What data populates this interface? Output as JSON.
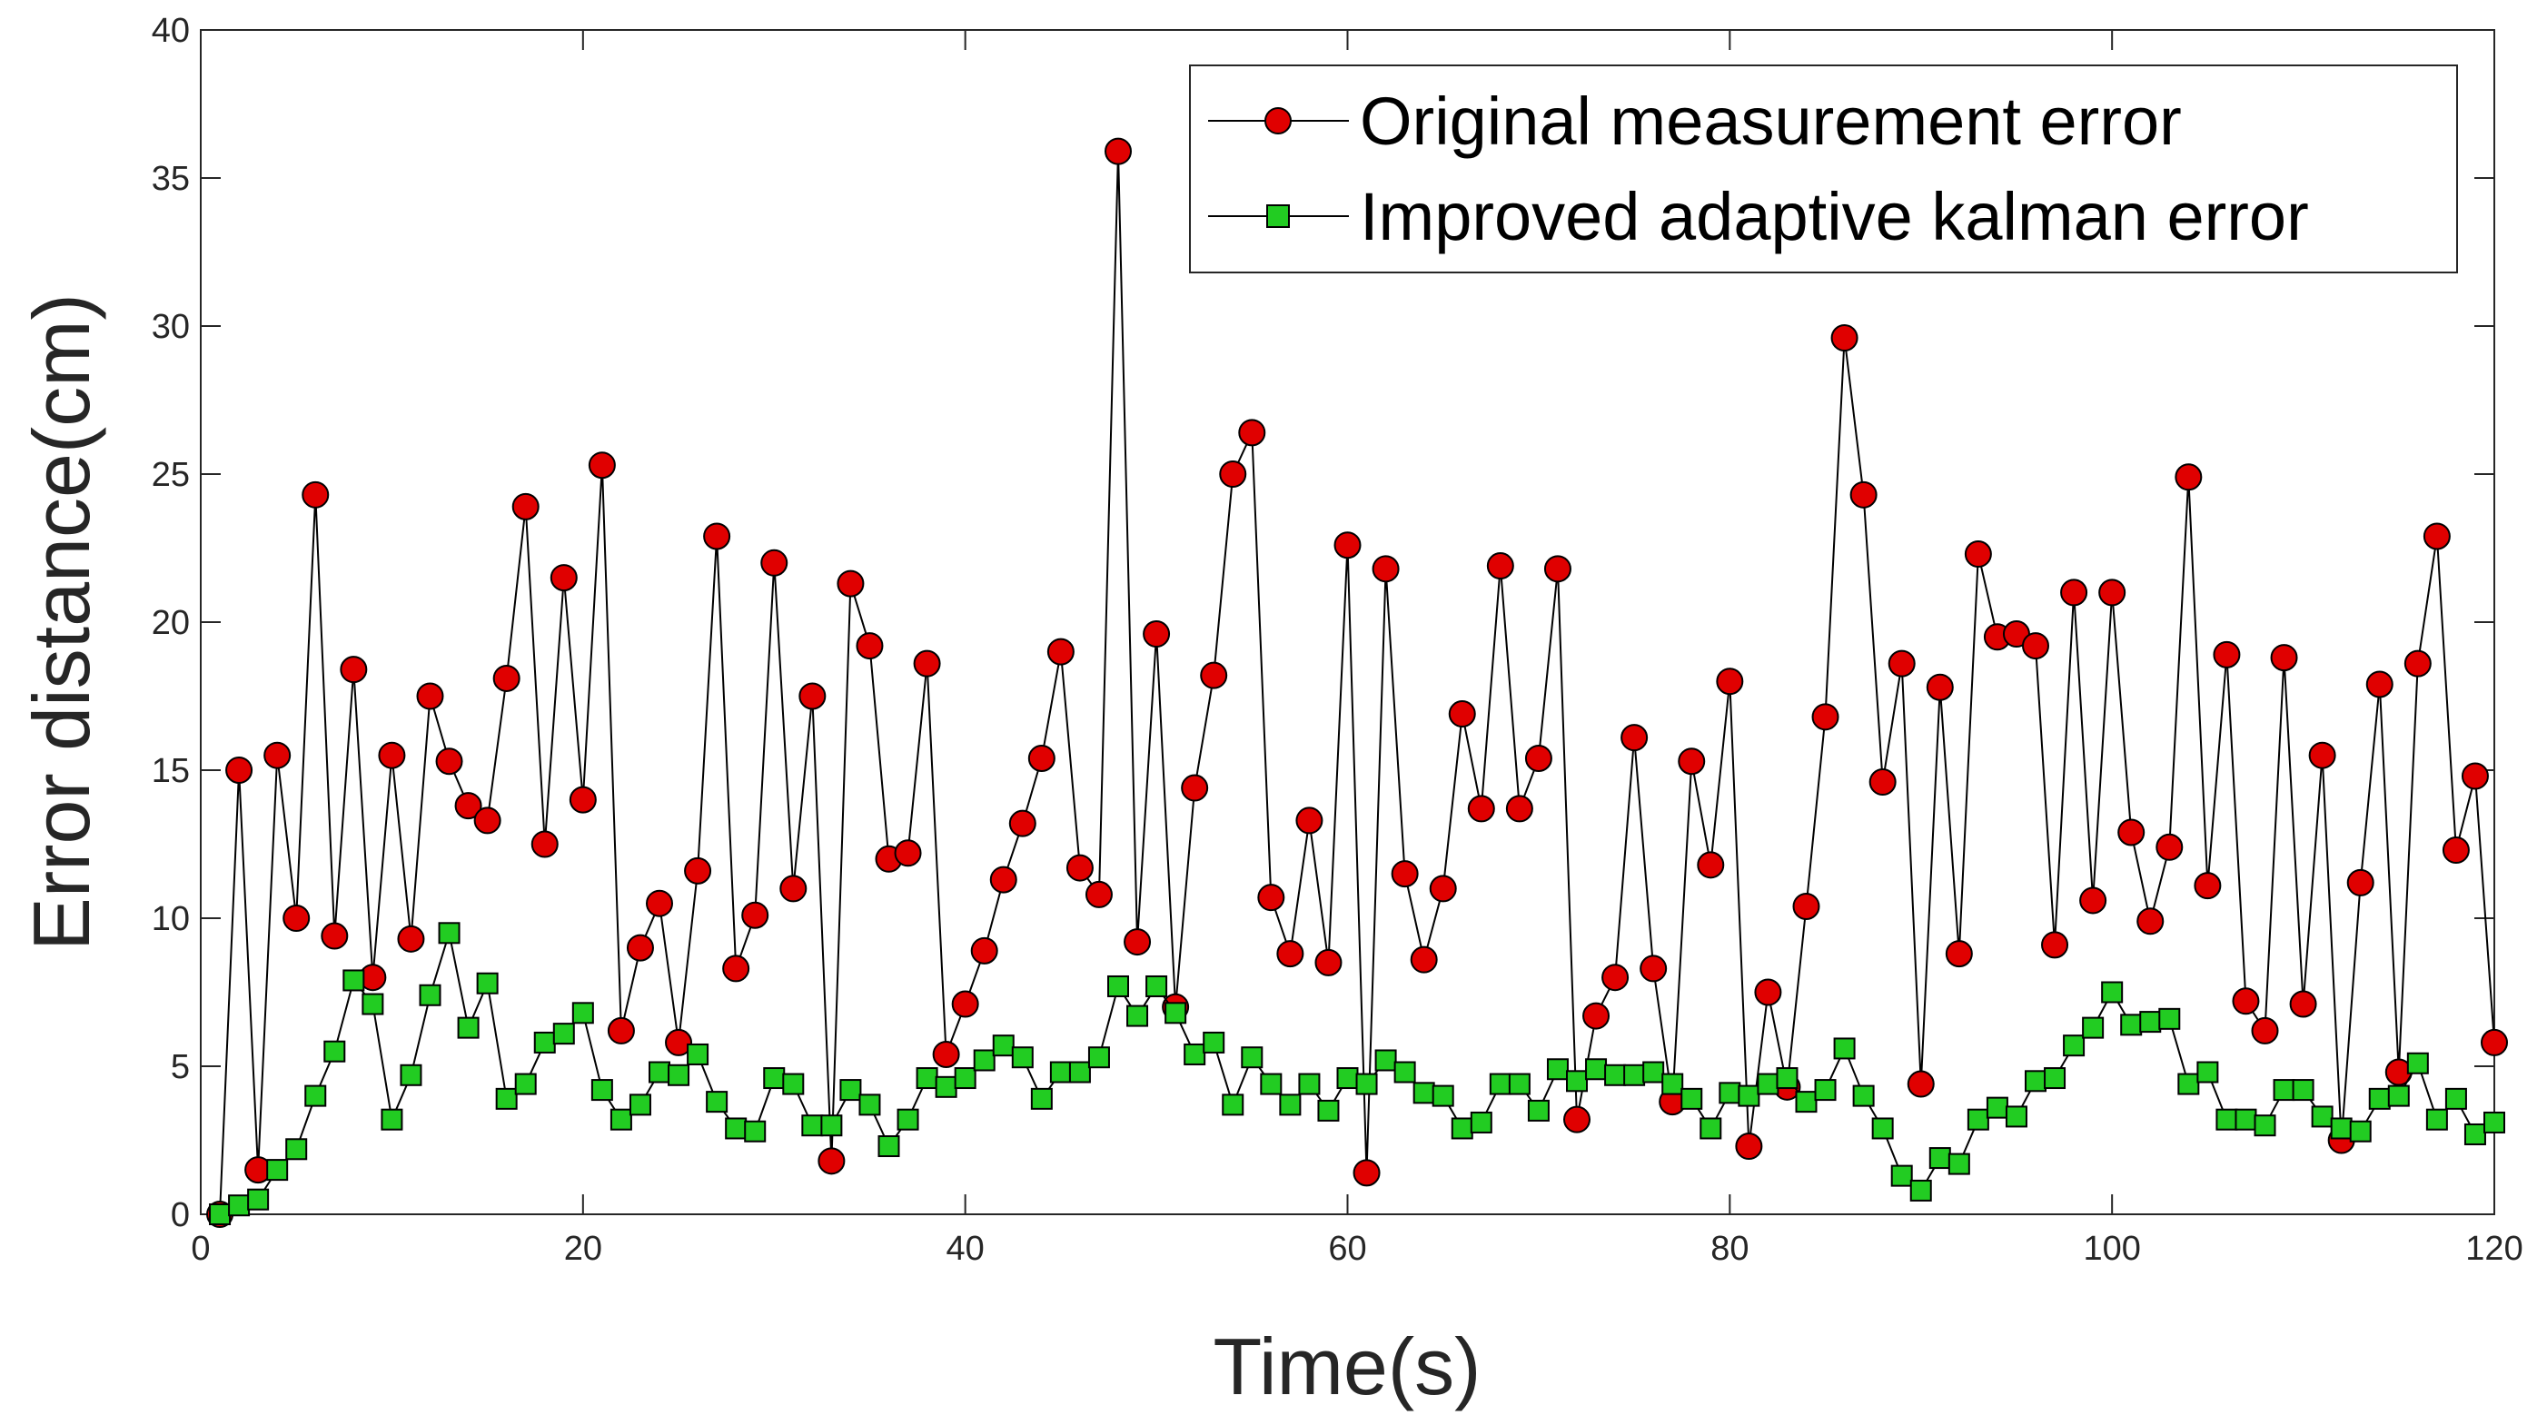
{
  "chart_data": {
    "type": "line",
    "title": "",
    "xlabel": "Time(s)",
    "ylabel": "Error distance(cm)",
    "xlim": [
      0,
      120
    ],
    "ylim": [
      0,
      40
    ],
    "xticks": [
      0,
      20,
      40,
      60,
      80,
      100,
      120
    ],
    "yticks": [
      0,
      5,
      10,
      15,
      20,
      25,
      30,
      35,
      40
    ],
    "grid": false,
    "legend_position": "top-right",
    "x": [
      1,
      2,
      3,
      4,
      5,
      6,
      7,
      8,
      9,
      10,
      11,
      12,
      13,
      14,
      15,
      16,
      17,
      18,
      19,
      20,
      21,
      22,
      23,
      24,
      25,
      26,
      27,
      28,
      29,
      30,
      31,
      32,
      33,
      34,
      35,
      36,
      37,
      38,
      39,
      40,
      41,
      42,
      43,
      44,
      45,
      46,
      47,
      48,
      49,
      50,
      51,
      52,
      53,
      54,
      55,
      56,
      57,
      58,
      59,
      60,
      61,
      62,
      63,
      64,
      65,
      66,
      67,
      68,
      69,
      70,
      71,
      72,
      73,
      74,
      75,
      76,
      77,
      78,
      79,
      80,
      81,
      82,
      83,
      84,
      85,
      86,
      87,
      88,
      89,
      90,
      91,
      92,
      93,
      94,
      95,
      96,
      97,
      98,
      99,
      100,
      101,
      102,
      103,
      104,
      105,
      106,
      107,
      108,
      109,
      110,
      111,
      112,
      113,
      114,
      115,
      116,
      117,
      118,
      119,
      120
    ],
    "series": [
      {
        "name": "Original measurement error",
        "color": "#e00000",
        "marker": "circle",
        "values": [
          0,
          15,
          1.5,
          15.5,
          10,
          24.3,
          9.4,
          18.4,
          8,
          15.5,
          9.3,
          17.5,
          15.3,
          13.8,
          13.3,
          18.1,
          23.9,
          12.5,
          21.5,
          14,
          25.3,
          6.2,
          9,
          10.5,
          5.8,
          11.6,
          22.9,
          8.3,
          10.1,
          22,
          11,
          17.5,
          1.8,
          21.3,
          19.2,
          12,
          12.2,
          18.6,
          5.4,
          7.1,
          8.9,
          11.3,
          13.2,
          15.4,
          19,
          11.7,
          10.8,
          35.9,
          9.2,
          19.6,
          7,
          14.4,
          18.2,
          25,
          26.4,
          10.7,
          8.8,
          13.3,
          8.5,
          22.6,
          1.4,
          21.8,
          11.5,
          8.6,
          11,
          16.9,
          13.7,
          21.9,
          13.7,
          15.4,
          21.8,
          3.2,
          6.7,
          8,
          16.1,
          8.3,
          3.8,
          15.3,
          11.8,
          18,
          2.3,
          7.5,
          4.3,
          10.4,
          16.8,
          29.6,
          24.3,
          14.6,
          18.6,
          4.4,
          17.8,
          8.8,
          22.3,
          19.5,
          19.6,
          19.2,
          9.1,
          21,
          10.6,
          21,
          12.9,
          9.9,
          12.4,
          24.9,
          11.1,
          18.9,
          7.2,
          6.2,
          18.8,
          7.1,
          15.5,
          2.5,
          11.2,
          17.9,
          4.8,
          18.6,
          22.9,
          12.3,
          14.8,
          5.8
        ]
      },
      {
        "name": "Improved adaptive kalman error",
        "color": "#22cc22",
        "marker": "square",
        "values": [
          0,
          0.3,
          0.5,
          1.5,
          2.2,
          4,
          5.5,
          7.9,
          7.1,
          3.2,
          4.7,
          7.4,
          9.5,
          6.3,
          7.8,
          3.9,
          4.4,
          5.8,
          6.1,
          6.8,
          4.2,
          3.2,
          3.7,
          4.8,
          4.7,
          5.4,
          3.8,
          2.9,
          2.8,
          4.6,
          4.4,
          3,
          3,
          4.2,
          3.7,
          2.3,
          3.2,
          4.6,
          4.3,
          4.6,
          5.2,
          5.7,
          5.3,
          3.9,
          4.8,
          4.8,
          5.3,
          7.7,
          6.7,
          7.7,
          6.8,
          5.4,
          5.8,
          3.7,
          5.3,
          4.4,
          3.7,
          4.4,
          3.5,
          4.6,
          4.4,
          5.2,
          4.8,
          4.1,
          4,
          2.9,
          3.1,
          4.4,
          4.4,
          3.5,
          4.9,
          4.5,
          4.9,
          4.7,
          4.7,
          4.8,
          4.4,
          3.9,
          2.9,
          4.1,
          4,
          4.4,
          4.6,
          3.8,
          4.2,
          5.6,
          4,
          2.9,
          1.3,
          0.8,
          1.9,
          1.7,
          3.2,
          3.6,
          3.3,
          4.5,
          4.6,
          5.7,
          6.3,
          7.5,
          6.4,
          6.5,
          6.6,
          4.4,
          4.8,
          3.2,
          3.2,
          3,
          4.2,
          4.2,
          3.3,
          2.9,
          2.8,
          3.9,
          4,
          5.1,
          3.2,
          3.9,
          2.7,
          3.1
        ]
      }
    ]
  }
}
